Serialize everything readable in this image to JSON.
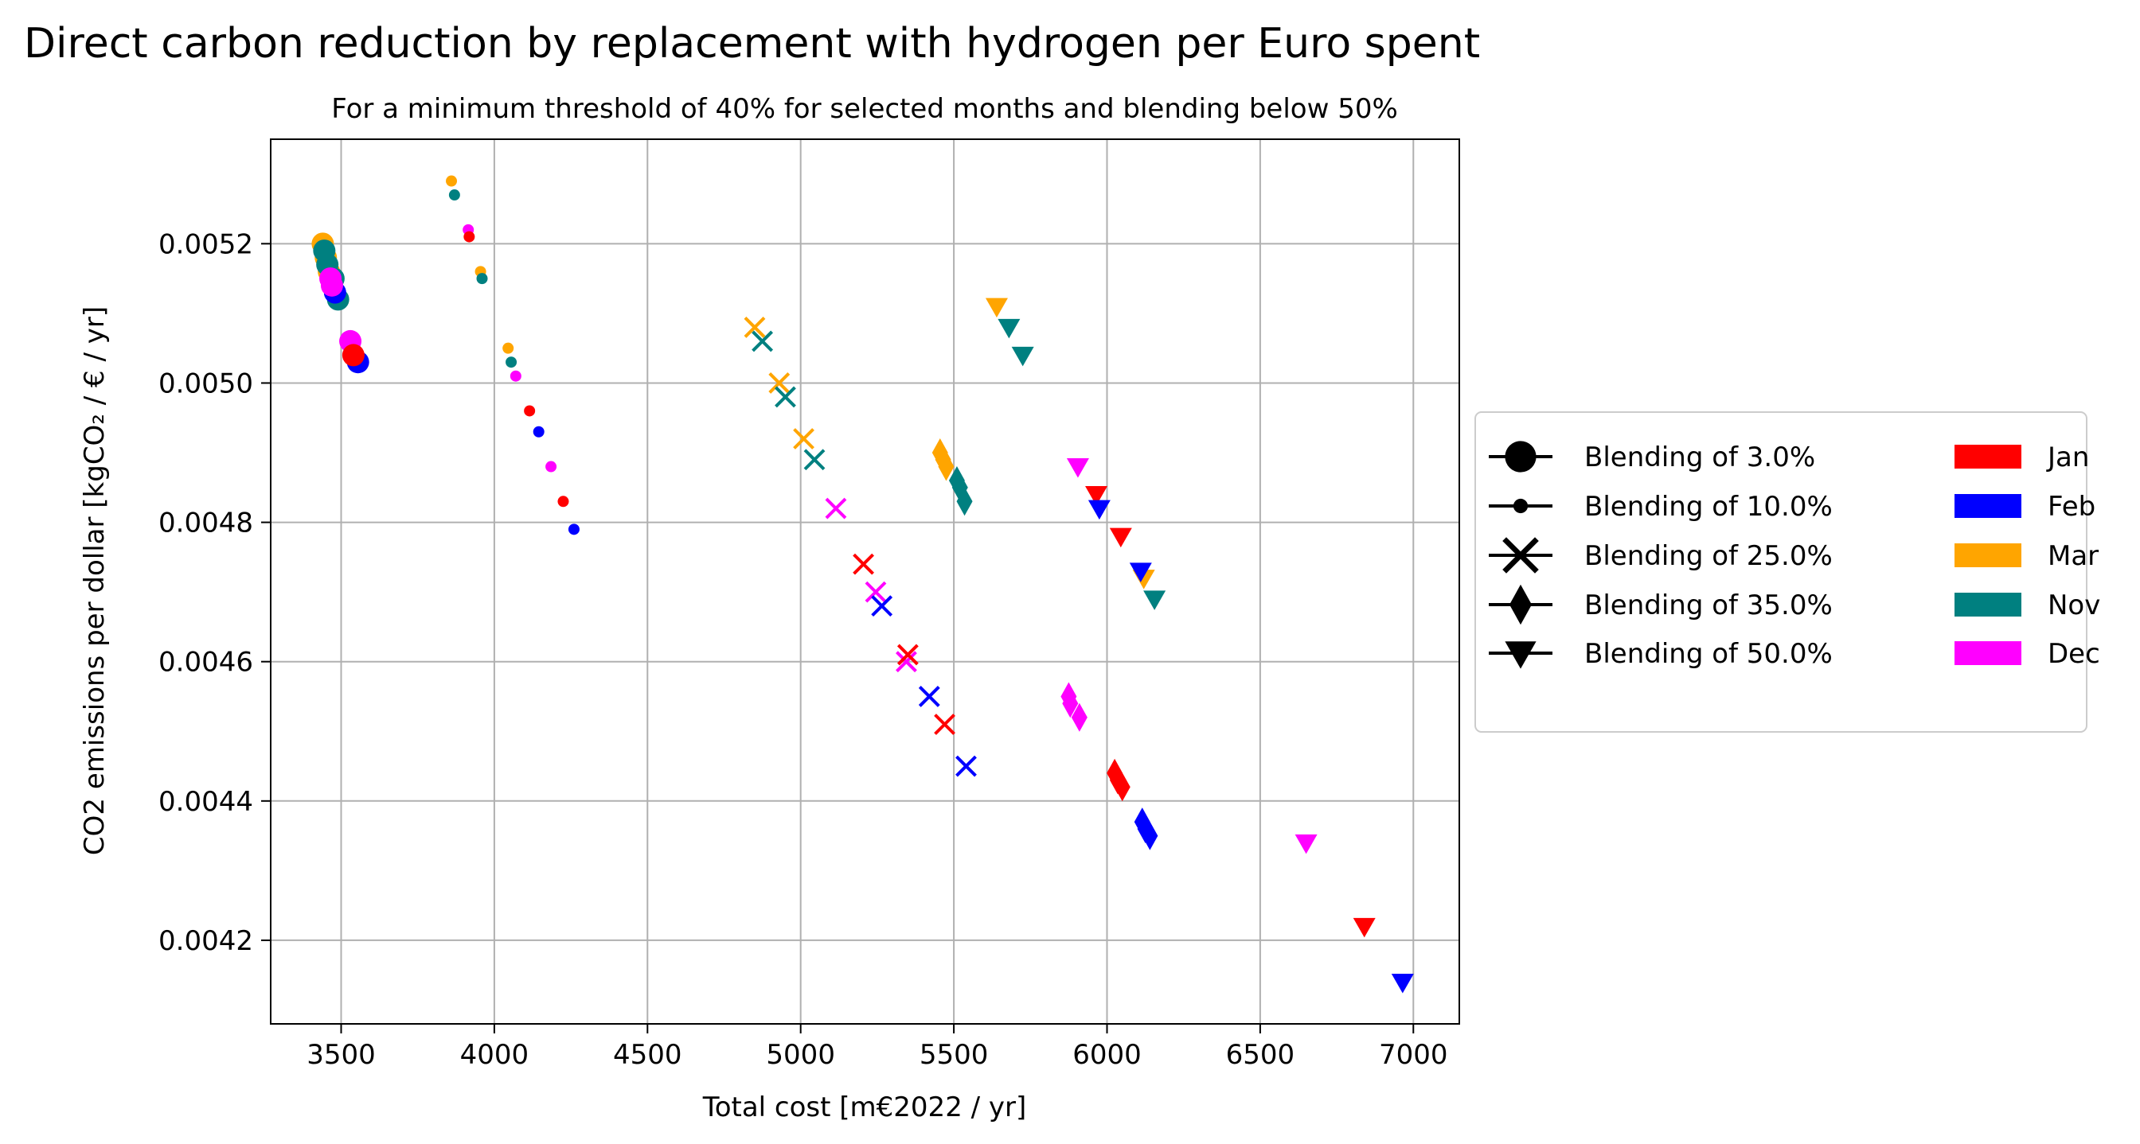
{
  "chart_data": {
    "type": "scatter",
    "title": "Direct carbon reduction by replacement with hydrogen per Euro spent",
    "subtitle": "For a minimum threshold of 40% for selected months and blending below 50%",
    "xlabel": "Total cost [m€2022 / yr]",
    "ylabel": "CO2 emissions per dollar [kgCO₂ / € / yr]",
    "xlim": [
      3270,
      7150
    ],
    "ylim": [
      0.00408,
      0.00535
    ],
    "xticks": [
      3500,
      4000,
      4500,
      5000,
      5500,
      6000,
      6500,
      7000
    ],
    "yticks": [
      0.0042,
      0.0044,
      0.0046,
      0.0048,
      0.005,
      0.0052
    ],
    "xtick_labels": [
      "3500",
      "4000",
      "4500",
      "5000",
      "5500",
      "6000",
      "6500",
      "7000"
    ],
    "ytick_labels": [
      "0.0042",
      "0.0044",
      "0.0046",
      "0.0048",
      "0.0050",
      "0.0052"
    ],
    "grid": true,
    "legend_position": "right-outside",
    "blending_legend": [
      {
        "label": "Blending of 3.0%",
        "marker": "circle-large"
      },
      {
        "label": "Blending of 10.0%",
        "marker": "circle-small"
      },
      {
        "label": "Blending of 25.0%",
        "marker": "x"
      },
      {
        "label": "Blending of 35.0%",
        "marker": "diamond"
      },
      {
        "label": "Blending of 50.0%",
        "marker": "triangle-down"
      }
    ],
    "month_legend": [
      {
        "label": "Jan",
        "color": "#ff0000"
      },
      {
        "label": "Feb",
        "color": "#0000ff"
      },
      {
        "label": "Mar",
        "color": "#ffa500"
      },
      {
        "label": "Nov",
        "color": "#008080"
      },
      {
        "label": "Dec",
        "color": "#ff00ff"
      }
    ],
    "series": [
      {
        "marker": "circle-large",
        "color": "#ffa500",
        "points": [
          [
            3440,
            0.0052
          ],
          [
            3450,
            0.00518
          ],
          [
            3460,
            0.00516
          ]
        ]
      },
      {
        "marker": "circle-large",
        "color": "#008080",
        "points": [
          [
            3445,
            0.00519
          ],
          [
            3455,
            0.00517
          ],
          [
            3475,
            0.00515
          ],
          [
            3490,
            0.00512
          ]
        ]
      },
      {
        "marker": "circle-large",
        "color": "#0000ff",
        "points": [
          [
            3480,
            0.00513
          ],
          [
            3555,
            0.00503
          ]
        ]
      },
      {
        "marker": "circle-large",
        "color": "#ff00ff",
        "points": [
          [
            3465,
            0.00515
          ],
          [
            3470,
            0.00514
          ],
          [
            3530,
            0.00506
          ]
        ]
      },
      {
        "marker": "circle-large",
        "color": "#ff0000",
        "points": [
          [
            3540,
            0.00504
          ]
        ]
      },
      {
        "marker": "circle-small",
        "color": "#ffa500",
        "points": [
          [
            3860,
            0.00529
          ],
          [
            3955,
            0.00516
          ],
          [
            4045,
            0.00505
          ]
        ]
      },
      {
        "marker": "circle-small",
        "color": "#008080",
        "points": [
          [
            3870,
            0.00527
          ],
          [
            3960,
            0.00515
          ],
          [
            4055,
            0.00503
          ]
        ]
      },
      {
        "marker": "circle-small",
        "color": "#ff00ff",
        "points": [
          [
            3915,
            0.00522
          ],
          [
            4070,
            0.00501
          ],
          [
            4185,
            0.00488
          ]
        ]
      },
      {
        "marker": "circle-small",
        "color": "#ff0000",
        "points": [
          [
            3918,
            0.00521
          ],
          [
            4115,
            0.00496
          ],
          [
            4225,
            0.00483
          ]
        ]
      },
      {
        "marker": "circle-small",
        "color": "#0000ff",
        "points": [
          [
            4145,
            0.00493
          ],
          [
            4260,
            0.00479
          ]
        ]
      },
      {
        "marker": "x",
        "color": "#ffa500",
        "points": [
          [
            4850,
            0.00508
          ],
          [
            4930,
            0.005
          ],
          [
            5010,
            0.00492
          ]
        ]
      },
      {
        "marker": "x",
        "color": "#008080",
        "points": [
          [
            4875,
            0.00506
          ],
          [
            4950,
            0.00498
          ],
          [
            5045,
            0.00489
          ]
        ]
      },
      {
        "marker": "x",
        "color": "#ff00ff",
        "points": [
          [
            5115,
            0.00482
          ],
          [
            5245,
            0.0047
          ],
          [
            5345,
            0.0046
          ]
        ]
      },
      {
        "marker": "x",
        "color": "#ff0000",
        "points": [
          [
            5205,
            0.00474
          ],
          [
            5350,
            0.00461
          ],
          [
            5470,
            0.00451
          ]
        ]
      },
      {
        "marker": "x",
        "color": "#0000ff",
        "points": [
          [
            5265,
            0.00468
          ],
          [
            5420,
            0.00455
          ],
          [
            5540,
            0.00445
          ]
        ]
      },
      {
        "marker": "diamond",
        "color": "#ffa500",
        "points": [
          [
            5455,
            0.0049
          ],
          [
            5465,
            0.00489
          ],
          [
            5475,
            0.00488
          ]
        ]
      },
      {
        "marker": "diamond",
        "color": "#008080",
        "points": [
          [
            5510,
            0.00486
          ],
          [
            5520,
            0.00485
          ],
          [
            5535,
            0.00483
          ]
        ]
      },
      {
        "marker": "diamond",
        "color": "#ff00ff",
        "points": [
          [
            5875,
            0.00455
          ],
          [
            5880,
            0.00454
          ],
          [
            5910,
            0.00452
          ]
        ]
      },
      {
        "marker": "diamond",
        "color": "#ff0000",
        "points": [
          [
            6025,
            0.00444
          ],
          [
            6035,
            0.00443
          ],
          [
            6050,
            0.00442
          ]
        ]
      },
      {
        "marker": "diamond",
        "color": "#0000ff",
        "points": [
          [
            6115,
            0.00437
          ],
          [
            6125,
            0.00436
          ],
          [
            6140,
            0.00435
          ]
        ]
      },
      {
        "marker": "triangle-down",
        "color": "#ffa500",
        "points": [
          [
            5640,
            0.00511
          ],
          [
            6120,
            0.00472
          ]
        ]
      },
      {
        "marker": "triangle-down",
        "color": "#008080",
        "points": [
          [
            5680,
            0.00508
          ],
          [
            5725,
            0.00504
          ],
          [
            6155,
            0.00469
          ]
        ]
      },
      {
        "marker": "triangle-down",
        "color": "#ff00ff",
        "points": [
          [
            5905,
            0.00488
          ],
          [
            6650,
            0.00434
          ]
        ]
      },
      {
        "marker": "triangle-down",
        "color": "#ff0000",
        "points": [
          [
            5965,
            0.00484
          ],
          [
            6045,
            0.00478
          ],
          [
            6840,
            0.00422
          ]
        ]
      },
      {
        "marker": "triangle-down",
        "color": "#0000ff",
        "points": [
          [
            5975,
            0.00482
          ],
          [
            6110,
            0.00473
          ],
          [
            6965,
            0.00414
          ]
        ]
      }
    ]
  }
}
